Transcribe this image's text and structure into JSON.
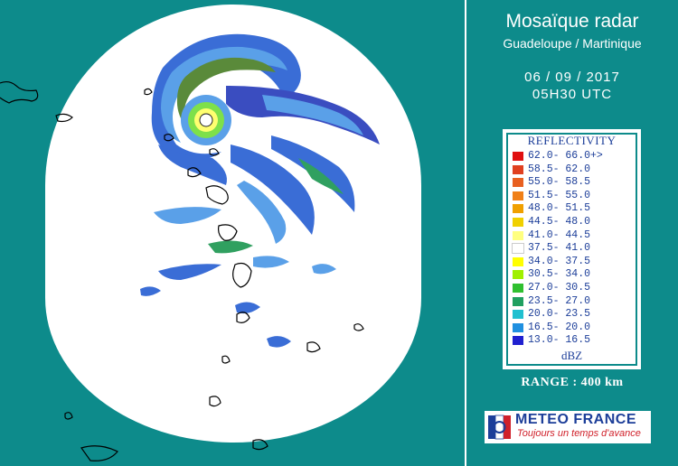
{
  "header": {
    "title": "Mosaïque radar",
    "subtitle": "Guadeloupe / Martinique",
    "date": "06 / 09 / 2017",
    "time": "05H30 UTC"
  },
  "legend": {
    "title": "REFLECTIVITY",
    "unit": "dBZ",
    "items": [
      {
        "range": "62.0- 66.0+>",
        "color": "#e01010"
      },
      {
        "range": "58.5- 62.0",
        "color": "#e04020"
      },
      {
        "range": "55.0- 58.5",
        "color": "#e86020"
      },
      {
        "range": "51.5- 55.0",
        "color": "#f08018"
      },
      {
        "range": "48.0- 51.5",
        "color": "#f0a000"
      },
      {
        "range": "44.5- 48.0",
        "color": "#f0d000"
      },
      {
        "range": "41.0- 44.5",
        "color": "#ffff80"
      },
      {
        "range": "37.5- 41.0",
        "color": "#ffffff"
      },
      {
        "range": "34.0- 37.5",
        "color": "#ffff00"
      },
      {
        "range": "30.5- 34.0",
        "color": "#a0f000"
      },
      {
        "range": "27.0- 30.5",
        "color": "#30c030"
      },
      {
        "range": "23.5- 27.0",
        "color": "#20a060"
      },
      {
        "range": "20.0- 23.5",
        "color": "#20c0d0"
      },
      {
        "range": "16.5- 20.0",
        "color": "#2090e0"
      },
      {
        "range": "13.0- 16.5",
        "color": "#2020d0"
      }
    ]
  },
  "range_label": "RANGE : 400 km",
  "logo": {
    "name": "METEO FRANCE",
    "tagline": "Toujours un temps d'avance"
  },
  "colors": {
    "background": "#0d8b8b",
    "coverage": "#ffffff",
    "text_accent": "#1c3e99"
  }
}
